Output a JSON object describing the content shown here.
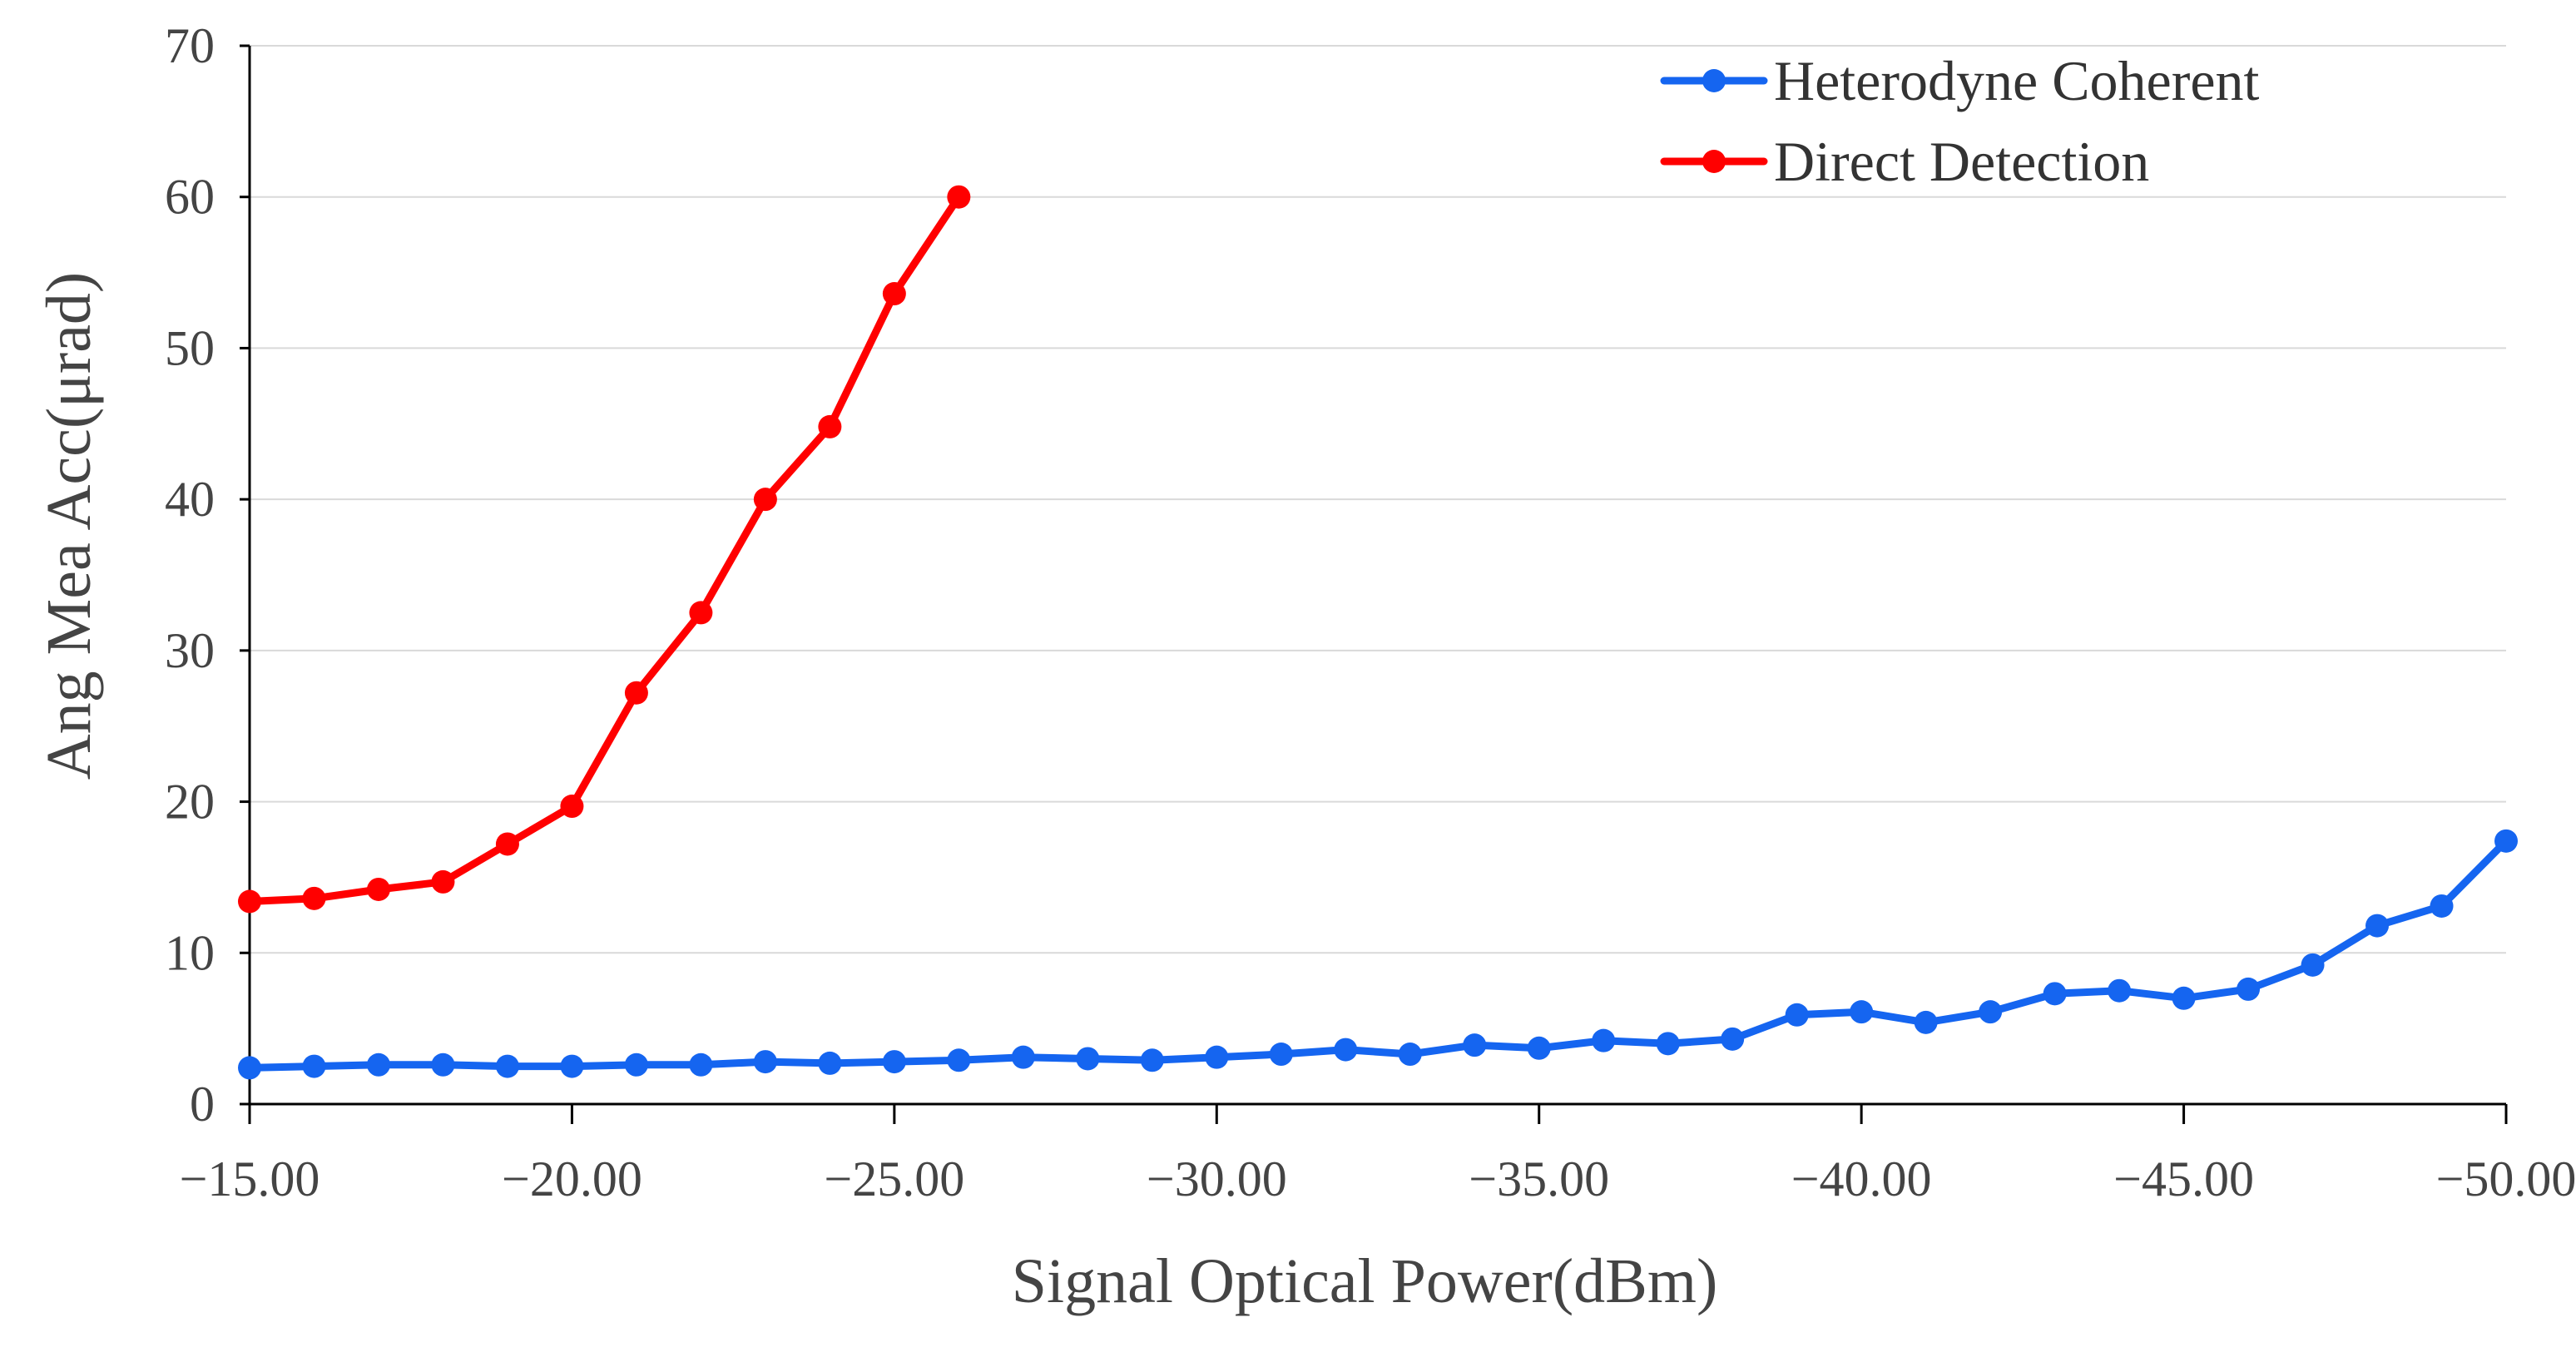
{
  "chart_data": {
    "type": "line",
    "xlabel": "Signal Optical Power(dBm)",
    "ylabel": "Ang Mea Acc(μrad)",
    "xlim": [
      -15,
      -50
    ],
    "ylim": [
      0,
      70
    ],
    "x_ticks": [
      "−15.00",
      "−20.00",
      "−25.00",
      "−30.00",
      "−35.00",
      "−40.00",
      "−45.00",
      "−50.00"
    ],
    "y_ticks": [
      "0",
      "10",
      "20",
      "30",
      "40",
      "50",
      "60",
      "70"
    ],
    "grid": true,
    "legend_position": "top-right",
    "series": [
      {
        "name": "Heterodyne Coherent",
        "color": "#1565f0",
        "x": [
          -15,
          -16,
          -17,
          -18,
          -19,
          -20,
          -21,
          -22,
          -23,
          -24,
          -25,
          -26,
          -27,
          -28,
          -29,
          -30,
          -31,
          -32,
          -33,
          -34,
          -35,
          -36,
          -37,
          -38,
          -39,
          -40,
          -41,
          -42,
          -43,
          -44,
          -45,
          -46,
          -47,
          -48,
          -49,
          -50
        ],
        "y": [
          2.4,
          2.5,
          2.6,
          2.6,
          2.5,
          2.5,
          2.6,
          2.6,
          2.8,
          2.7,
          2.8,
          2.9,
          3.1,
          3.0,
          2.9,
          3.1,
          3.3,
          3.6,
          3.3,
          3.9,
          3.7,
          4.2,
          4.0,
          4.3,
          5.9,
          6.1,
          5.4,
          6.1,
          7.3,
          7.5,
          7.0,
          7.6,
          9.2,
          11.8,
          13.1,
          17.4
        ]
      },
      {
        "name": "Direct Detection",
        "color": "#ff0000",
        "x": [
          -15,
          -16,
          -17,
          -18,
          -19,
          -20,
          -21,
          -22,
          -23,
          -24,
          -25,
          -26
        ],
        "y": [
          13.4,
          13.6,
          14.2,
          14.7,
          17.2,
          19.7,
          27.2,
          32.5,
          40.0,
          44.8,
          53.6,
          60.0
        ]
      }
    ]
  }
}
